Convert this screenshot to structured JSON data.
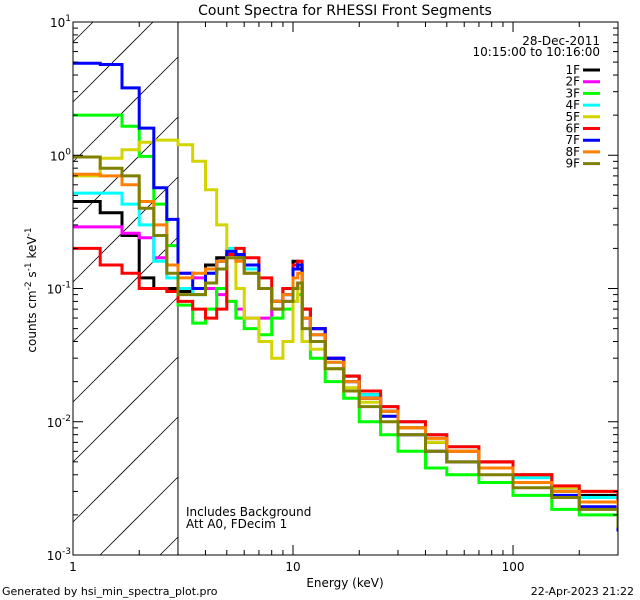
{
  "chart_data": {
    "type": "line",
    "title": "Count Spectra for RHESSI Front Segments",
    "xlabel": "Energy (keV)",
    "ylabel": "counts cm^-2 s^-1 keV^-1",
    "xscale": "log",
    "yscale": "log",
    "xlim": [
      1,
      300
    ],
    "ylim": [
      0.001,
      10
    ],
    "x_tick_labels": [
      "1",
      "10",
      "100"
    ],
    "y_tick_labels": [
      {
        "base": "10",
        "exp": "1"
      },
      {
        "base": "10",
        "exp": "0"
      },
      {
        "base": "10",
        "exp": "-1"
      },
      {
        "base": "10",
        "exp": "-2"
      },
      {
        "base": "10",
        "exp": "-3"
      }
    ],
    "date": "28-Dec-2011",
    "time_range": "10:15:00 to 10:16:00",
    "legend_position": "top-right",
    "shaded_region_keV": [
      1,
      3
    ],
    "annotations": [
      "Includes Background",
      "Att A0, FDecim 1"
    ],
    "x": [
      1.0,
      1.33,
      1.67,
      2.0,
      2.33,
      2.67,
      3.0,
      3.5,
      4.0,
      4.5,
      5.0,
      5.5,
      6.0,
      7.0,
      8.0,
      9.0,
      10.0,
      10.5,
      11.0,
      12.0,
      14,
      17,
      20,
      25,
      30,
      40,
      50,
      70,
      100,
      150,
      200,
      300
    ],
    "series": [
      {
        "name": "1F",
        "color": "#000000",
        "values": [
          0.45,
          0.37,
          0.25,
          0.12,
          0.1,
          0.1,
          0.095,
          0.1,
          0.15,
          0.17,
          0.18,
          0.17,
          0.14,
          0.1,
          0.08,
          0.1,
          0.16,
          0.14,
          0.07,
          0.05,
          0.03,
          0.022,
          0.016,
          0.012,
          0.009,
          0.007,
          0.006,
          0.005,
          0.004,
          0.003,
          0.0028,
          0.002
        ]
      },
      {
        "name": "2F",
        "color": "#ff00ff",
        "values": [
          0.29,
          0.29,
          0.26,
          0.24,
          0.17,
          0.15,
          0.13,
          0.12,
          0.1,
          0.09,
          0.08,
          0.07,
          0.06,
          0.06,
          0.07,
          0.08,
          0.1,
          0.11,
          0.06,
          0.045,
          0.03,
          0.02,
          0.015,
          0.013,
          0.01,
          0.008,
          0.006,
          0.0045,
          0.0035,
          0.003,
          0.0025,
          0.0018
        ]
      },
      {
        "name": "3F",
        "color": "#00ff00",
        "values": [
          2.0,
          2.0,
          1.65,
          0.98,
          0.43,
          0.21,
          0.075,
          0.055,
          0.07,
          0.1,
          0.08,
          0.06,
          0.05,
          0.045,
          0.06,
          0.07,
          0.08,
          0.09,
          0.04,
          0.03,
          0.02,
          0.015,
          0.01,
          0.008,
          0.006,
          0.0045,
          0.004,
          0.0035,
          0.0028,
          0.0022,
          0.002,
          0.0015
        ]
      },
      {
        "name": "4F",
        "color": "#00ffff",
        "values": [
          0.52,
          0.52,
          0.43,
          0.3,
          0.16,
          0.12,
          0.1,
          0.09,
          0.13,
          0.16,
          0.2,
          0.18,
          0.14,
          0.1,
          0.08,
          0.09,
          0.14,
          0.15,
          0.06,
          0.045,
          0.028,
          0.02,
          0.016,
          0.013,
          0.01,
          0.008,
          0.0065,
          0.0045,
          0.0038,
          0.003,
          0.0027,
          0.002
        ]
      },
      {
        "name": "5F",
        "color": "#d4d400",
        "values": [
          0.7,
          0.95,
          1.1,
          1.25,
          1.3,
          1.3,
          1.2,
          0.9,
          0.55,
          0.3,
          0.18,
          0.1,
          0.06,
          0.04,
          0.03,
          0.04,
          0.08,
          0.1,
          0.04,
          0.035,
          0.025,
          0.018,
          0.014,
          0.011,
          0.009,
          0.007,
          0.006,
          0.0045,
          0.004,
          0.0032,
          0.003,
          0.0022
        ]
      },
      {
        "name": "6F",
        "color": "#ff0000",
        "values": [
          0.2,
          0.15,
          0.13,
          0.1,
          0.1,
          0.095,
          0.08,
          0.07,
          0.06,
          0.07,
          0.18,
          0.2,
          0.17,
          0.12,
          0.08,
          0.1,
          0.15,
          0.16,
          0.07,
          0.05,
          0.03,
          0.022,
          0.017,
          0.013,
          0.01,
          0.008,
          0.0065,
          0.005,
          0.004,
          0.0033,
          0.003,
          0.0022
        ]
      },
      {
        "name": "7F",
        "color": "#0000ff",
        "values": [
          4.9,
          4.8,
          3.2,
          1.6,
          0.57,
          0.33,
          0.13,
          0.1,
          0.13,
          0.16,
          0.19,
          0.18,
          0.15,
          0.1,
          0.08,
          0.09,
          0.14,
          0.15,
          0.06,
          0.05,
          0.03,
          0.02,
          0.015,
          0.011,
          0.008,
          0.006,
          0.005,
          0.0045,
          0.0035,
          0.0028,
          0.0023,
          0.0015
        ]
      },
      {
        "name": "8F",
        "color": "#ff8000",
        "values": [
          0.72,
          0.7,
          0.6,
          0.45,
          0.3,
          0.15,
          0.12,
          0.13,
          0.14,
          0.16,
          0.17,
          0.16,
          0.13,
          0.1,
          0.08,
          0.09,
          0.12,
          0.13,
          0.06,
          0.045,
          0.028,
          0.02,
          0.015,
          0.012,
          0.009,
          0.0075,
          0.006,
          0.0045,
          0.0035,
          0.003,
          0.0025,
          0.0018
        ]
      },
      {
        "name": "9F",
        "color": "#808000",
        "values": [
          0.97,
          0.8,
          0.7,
          0.4,
          0.25,
          0.13,
          0.09,
          0.09,
          0.11,
          0.14,
          0.17,
          0.17,
          0.13,
          0.1,
          0.07,
          0.08,
          0.1,
          0.11,
          0.05,
          0.04,
          0.025,
          0.017,
          0.013,
          0.01,
          0.008,
          0.006,
          0.005,
          0.004,
          0.0032,
          0.0027,
          0.0022,
          0.0016
        ]
      }
    ]
  },
  "footer": {
    "generated_by": "Generated by hsi_min_spectra_plot.pro",
    "timestamp": "22-Apr-2023 21:22"
  }
}
